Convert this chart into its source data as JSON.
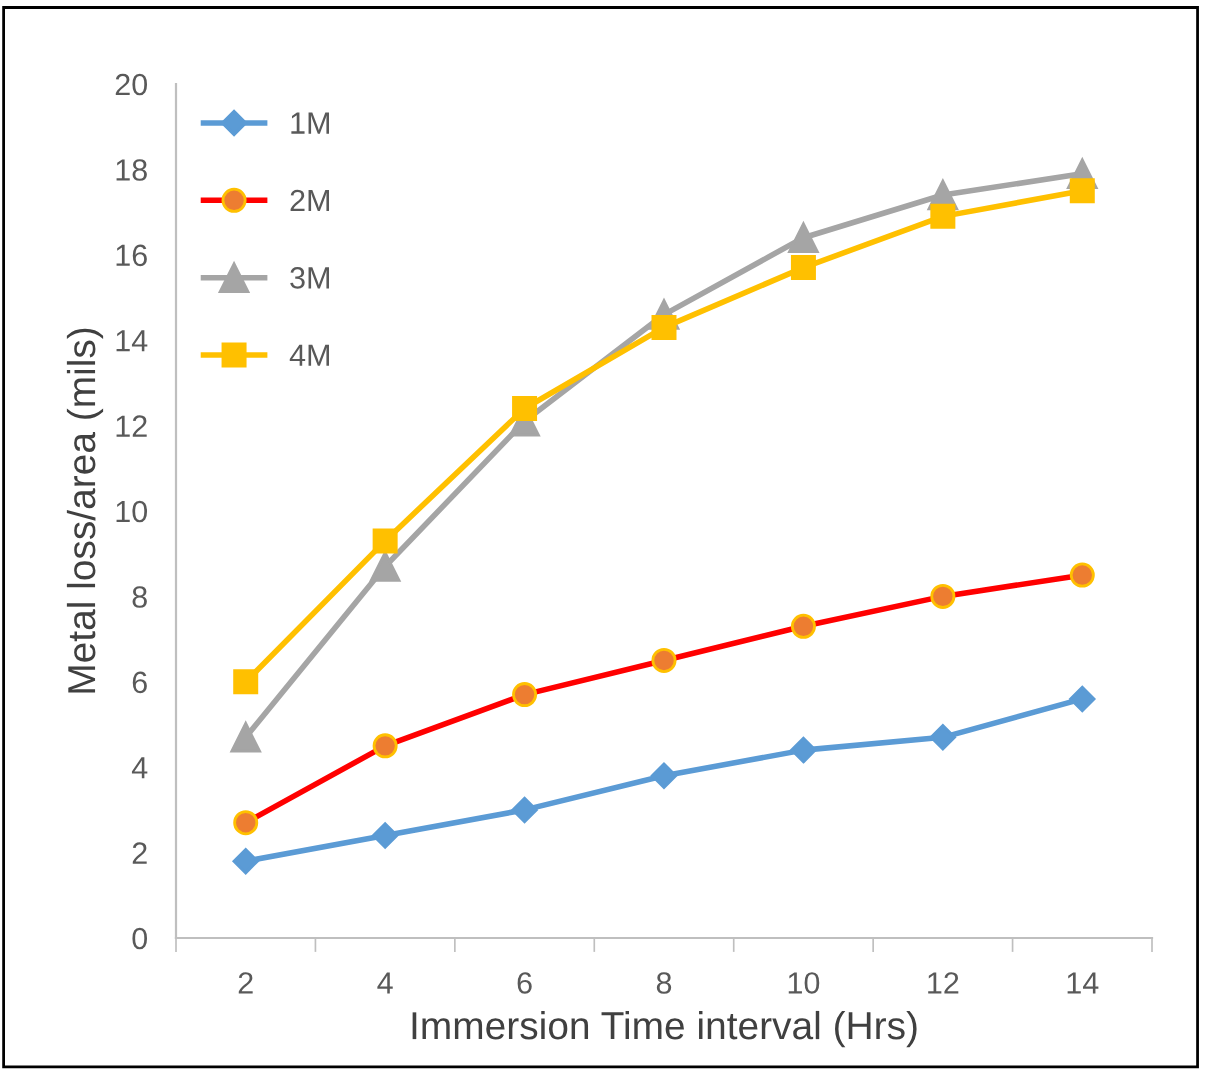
{
  "chart_data": {
    "type": "line",
    "xlabel": "Immersion Time interval (Hrs)",
    "ylabel": "Metal loss/area (mils)",
    "categories": [
      "2",
      "4",
      "6",
      "8",
      "10",
      "12",
      "14"
    ],
    "series": [
      {
        "name": "1M",
        "color": "#5b9bd5",
        "marker": "diamond",
        "values": [
          1.8,
          2.4,
          3.0,
          3.8,
          4.4,
          4.7,
          5.6
        ]
      },
      {
        "name": "2M",
        "color": "#ff0000",
        "marker": "circle",
        "values": [
          2.7,
          4.5,
          5.7,
          6.5,
          7.3,
          8.0,
          8.5
        ]
      },
      {
        "name": "3M",
        "color": "#a5a5a5",
        "marker": "triangle",
        "values": [
          4.7,
          8.7,
          12.1,
          14.6,
          16.4,
          17.4,
          17.9
        ]
      },
      {
        "name": "4M",
        "color": "#ffc000",
        "marker": "square",
        "values": [
          6.0,
          9.3,
          12.4,
          14.3,
          15.7,
          16.9,
          17.5
        ]
      }
    ],
    "ylim": [
      0,
      20
    ],
    "yticks": [
      0,
      2,
      4,
      6,
      8,
      10,
      12,
      14,
      16,
      18,
      20
    ],
    "grid": false,
    "legend": "top left",
    "line_style": "solid"
  }
}
